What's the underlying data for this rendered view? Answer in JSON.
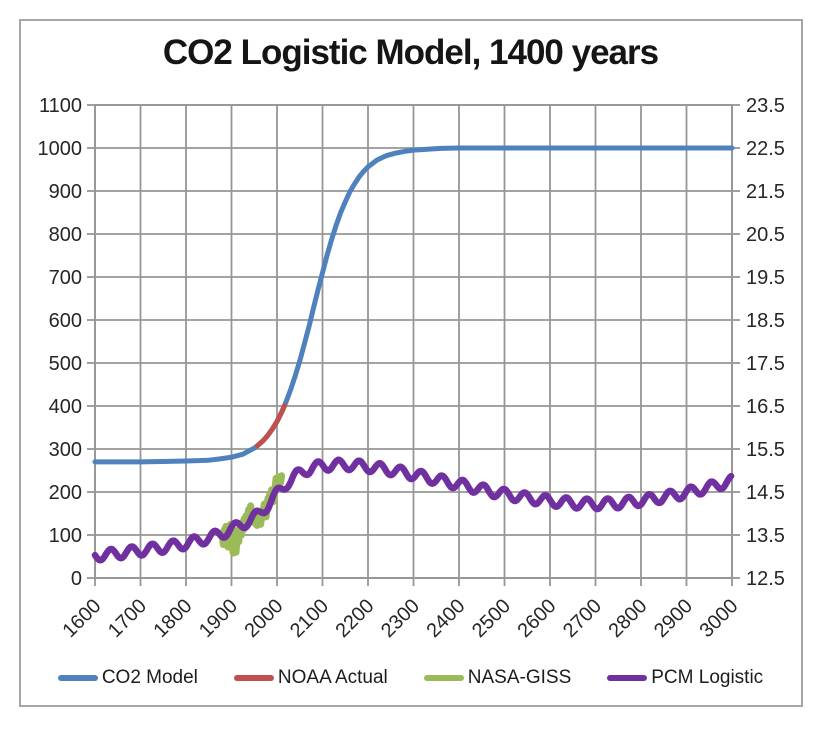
{
  "chart_data": {
    "type": "line",
    "title": "CO2 Logistic Model, 1400 years",
    "grid": true,
    "legend_position": "bottom",
    "x_axis": {
      "min": 1600,
      "max": 3000,
      "tick_step": 100,
      "tick_labels": [
        "1600",
        "1700",
        "1800",
        "1900",
        "2000",
        "2100",
        "2200",
        "2300",
        "2400",
        "2500",
        "2600",
        "2700",
        "2800",
        "2900",
        "3000"
      ]
    },
    "y_axis_left": {
      "min": 0,
      "max": 1100,
      "tick_step": 100,
      "tick_labels": [
        "0",
        "100",
        "200",
        "300",
        "400",
        "500",
        "600",
        "700",
        "800",
        "900",
        "1000",
        "1100"
      ]
    },
    "y_axis_right": {
      "min": 12.5,
      "max": 23.5,
      "tick_step": 1.0,
      "tick_labels": [
        "12.5",
        "13.5",
        "14.5",
        "15.5",
        "16.5",
        "17.5",
        "18.5",
        "19.5",
        "20.5",
        "21.5",
        "22.5",
        "23.5"
      ]
    },
    "series": [
      {
        "name": "CO2 Model",
        "color": "#4F81BD",
        "width": 5,
        "axis": "left",
        "points": [
          [
            1600,
            270
          ],
          [
            1700,
            270
          ],
          [
            1750,
            271
          ],
          [
            1800,
            272
          ],
          [
            1850,
            274
          ],
          [
            1875,
            277
          ],
          [
            1900,
            281
          ],
          [
            1925,
            288
          ],
          [
            1950,
            302
          ],
          [
            1960,
            310
          ],
          [
            1970,
            320
          ],
          [
            1980,
            332
          ],
          [
            1990,
            347
          ],
          [
            2000,
            364
          ],
          [
            2010,
            385
          ],
          [
            2020,
            410
          ],
          [
            2030,
            438
          ],
          [
            2040,
            470
          ],
          [
            2050,
            505
          ],
          [
            2060,
            544
          ],
          [
            2070,
            584
          ],
          [
            2080,
            627
          ],
          [
            2090,
            669
          ],
          [
            2100,
            710
          ],
          [
            2110,
            750
          ],
          [
            2120,
            787
          ],
          [
            2130,
            820
          ],
          [
            2140,
            850
          ],
          [
            2150,
            875
          ],
          [
            2160,
            898
          ],
          [
            2170,
            916
          ],
          [
            2180,
            932
          ],
          [
            2190,
            945
          ],
          [
            2200,
            956
          ],
          [
            2220,
            972
          ],
          [
            2240,
            982
          ],
          [
            2260,
            988
          ],
          [
            2280,
            992
          ],
          [
            2300,
            995
          ],
          [
            2330,
            997
          ],
          [
            2360,
            999
          ],
          [
            2400,
            1000
          ],
          [
            2500,
            1000
          ],
          [
            2600,
            1000
          ],
          [
            2700,
            1000
          ],
          [
            2800,
            1000
          ],
          [
            2900,
            1000
          ],
          [
            3000,
            1000
          ]
        ]
      },
      {
        "name": "NOAA Actual",
        "color": "#C0504D",
        "width": 5,
        "axis": "left",
        "points": [
          [
            1957,
            308
          ],
          [
            1970,
            320
          ],
          [
            1980,
            332
          ],
          [
            1990,
            347
          ],
          [
            2000,
            364
          ],
          [
            2008,
            381
          ],
          [
            2017,
            401
          ]
        ]
      },
      {
        "name": "NASA-GISS",
        "color": "#9BBB59",
        "width": 7,
        "axis": "left",
        "points": [
          [
            1880,
            100
          ],
          [
            1882,
            78
          ],
          [
            1884,
            112
          ],
          [
            1886,
            88
          ],
          [
            1888,
            120
          ],
          [
            1890,
            95
          ],
          [
            1892,
            72
          ],
          [
            1894,
            110
          ],
          [
            1896,
            88
          ],
          [
            1898,
            125
          ],
          [
            1900,
            98
          ],
          [
            1902,
            68
          ],
          [
            1904,
            58
          ],
          [
            1906,
            95
          ],
          [
            1908,
            72
          ],
          [
            1910,
            60
          ],
          [
            1912,
            88
          ],
          [
            1914,
            112
          ],
          [
            1916,
            85
          ],
          [
            1918,
            105
          ],
          [
            1920,
            125
          ],
          [
            1922,
            100
          ],
          [
            1924,
            130
          ],
          [
            1926,
            112
          ],
          [
            1928,
            138
          ],
          [
            1930,
            118
          ],
          [
            1932,
            145
          ],
          [
            1934,
            122
          ],
          [
            1936,
            150
          ],
          [
            1938,
            160
          ],
          [
            1940,
            145
          ],
          [
            1942,
            168
          ],
          [
            1944,
            155
          ],
          [
            1946,
            132
          ],
          [
            1948,
            148
          ],
          [
            1950,
            128
          ],
          [
            1952,
            145
          ],
          [
            1954,
            132
          ],
          [
            1956,
            122
          ],
          [
            1958,
            152
          ],
          [
            1960,
            140
          ],
          [
            1962,
            150
          ],
          [
            1964,
            125
          ],
          [
            1966,
            138
          ],
          [
            1968,
            148
          ],
          [
            1970,
            160
          ],
          [
            1972,
            172
          ],
          [
            1974,
            150
          ],
          [
            1976,
            142
          ],
          [
            1978,
            168
          ],
          [
            1980,
            185
          ],
          [
            1982,
            172
          ],
          [
            1984,
            195
          ],
          [
            1986,
            188
          ],
          [
            1988,
            205
          ],
          [
            1990,
            192
          ],
          [
            1992,
            178
          ],
          [
            1994,
            198
          ],
          [
            1996,
            212
          ],
          [
            1998,
            232
          ],
          [
            2000,
            210
          ],
          [
            2002,
            225
          ],
          [
            2004,
            235
          ],
          [
            2006,
            228
          ],
          [
            2008,
            222
          ],
          [
            2010,
            238
          ]
        ]
      },
      {
        "name": "PCM Logistic",
        "color": "#7030A0",
        "width": 6.5,
        "axis": "left",
        "trend_points": [
          [
            1600,
            52
          ],
          [
            1650,
            57
          ],
          [
            1700,
            64
          ],
          [
            1750,
            71
          ],
          [
            1800,
            80
          ],
          [
            1850,
            93
          ],
          [
            1880,
            104
          ],
          [
            1900,
            113
          ],
          [
            1920,
            123
          ],
          [
            1940,
            134
          ],
          [
            1960,
            148
          ],
          [
            1980,
            170
          ],
          [
            2000,
            196
          ],
          [
            2020,
            219
          ],
          [
            2040,
            237
          ],
          [
            2060,
            249
          ],
          [
            2080,
            257
          ],
          [
            2100,
            261
          ],
          [
            2130,
            263
          ],
          [
            2160,
            263
          ],
          [
            2200,
            259
          ],
          [
            2250,
            251
          ],
          [
            2300,
            241
          ],
          [
            2350,
            229
          ],
          [
            2400,
            218
          ],
          [
            2450,
            206
          ],
          [
            2500,
            195
          ],
          [
            2550,
            186
          ],
          [
            2600,
            179
          ],
          [
            2650,
            174
          ],
          [
            2700,
            172
          ],
          [
            2750,
            174
          ],
          [
            2800,
            180
          ],
          [
            2850,
            188
          ],
          [
            2900,
            198
          ],
          [
            2950,
            211
          ],
          [
            3000,
            226
          ]
        ],
        "oscillation": {
          "period_years": 45.5,
          "amplitude": 12,
          "phase_year": 1578
        }
      }
    ]
  },
  "legend": {
    "items": [
      {
        "label": "CO2 Model",
        "color": "#4F81BD"
      },
      {
        "label": "NOAA Actual",
        "color": "#C0504D"
      },
      {
        "label": "NASA-GISS",
        "color": "#9BBB59"
      },
      {
        "label": "PCM Logistic",
        "color": "#7030A0"
      }
    ]
  },
  "colors": {
    "grid": "#969696",
    "frame_border": "#a6a6a6",
    "axis_text": "#262626",
    "background": "#ffffff"
  }
}
